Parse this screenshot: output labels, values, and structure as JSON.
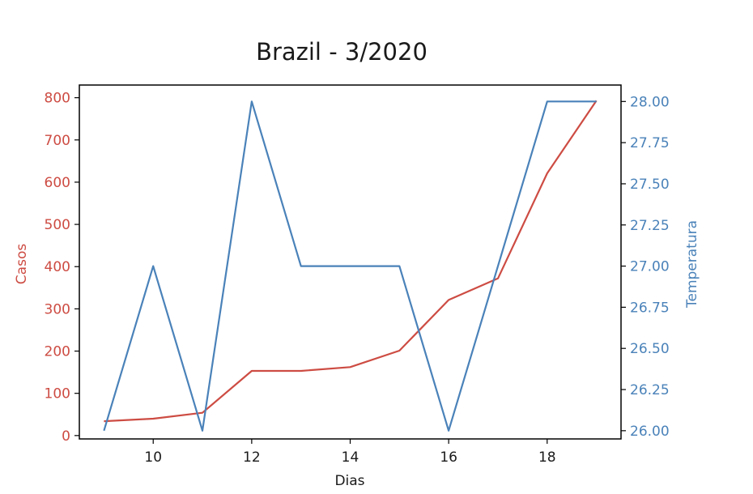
{
  "chart_data": {
    "type": "line",
    "title": "Brazil - 3/2020",
    "xlabel": "Dias",
    "ylabel_left": "Casos",
    "ylabel_right": "Temperatura",
    "x": [
      9,
      10,
      11,
      12,
      13,
      14,
      15,
      16,
      17,
      18,
      19
    ],
    "xlim": [
      8.5,
      19.5
    ],
    "xticks": [
      10,
      12,
      14,
      16,
      18
    ],
    "ylim_left": [
      -8,
      830
    ],
    "yticks_left": [
      0,
      100,
      200,
      300,
      400,
      500,
      600,
      700,
      800
    ],
    "ylim_right": [
      25.95,
      28.1
    ],
    "yticks_right": [
      "26.00",
      "26.25",
      "26.50",
      "26.75",
      "27.00",
      "27.25",
      "27.50",
      "27.75",
      "28.00"
    ],
    "grid": false,
    "series": [
      {
        "axis": "left",
        "color": "#cd4c43",
        "values": [
          34,
          40,
          54,
          153,
          153,
          162,
          201,
          321,
          372,
          621,
          793
        ]
      },
      {
        "axis": "right",
        "color": "#4a82b9",
        "values": [
          26.0,
          27.0,
          26.0,
          28.0,
          27.0,
          27.0,
          27.0,
          26.0,
          27.0,
          28.0,
          28.0
        ]
      }
    ]
  }
}
